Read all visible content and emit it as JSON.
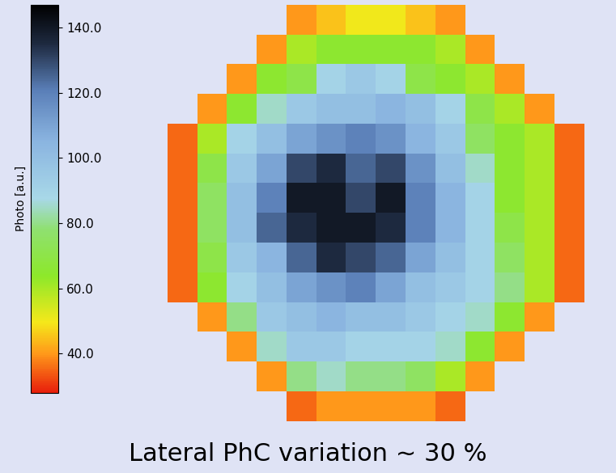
{
  "chart_data": {
    "type": "heatmap",
    "caption": "Lateral PhC variation ~ 30 %",
    "colorbar_label": "Photo [a.u.]",
    "colorbar_range": [
      28,
      147
    ],
    "colorbar_ticks": [
      {
        "value": 40,
        "label": "40.0"
      },
      {
        "value": 60,
        "label": "60.0"
      },
      {
        "value": 80,
        "label": "80.0"
      },
      {
        "value": 100,
        "label": "100.0"
      },
      {
        "value": 120,
        "label": "120.0"
      },
      {
        "value": 140,
        "label": "140.0"
      }
    ],
    "cells": [
      [
        null,
        null,
        null,
        null,
        40,
        45,
        50,
        50,
        45,
        40,
        null,
        null,
        null,
        null
      ],
      [
        null,
        null,
        null,
        40,
        60,
        65,
        65,
        65,
        65,
        60,
        40,
        null,
        null,
        null
      ],
      [
        null,
        null,
        40,
        65,
        70,
        90,
        95,
        90,
        70,
        65,
        60,
        40,
        null,
        null
      ],
      [
        null,
        40,
        65,
        85,
        95,
        100,
        100,
        105,
        100,
        90,
        70,
        60,
        40,
        null
      ],
      [
        35,
        60,
        90,
        100,
        110,
        115,
        120,
        115,
        105,
        95,
        75,
        65,
        60,
        35
      ],
      [
        35,
        70,
        95,
        110,
        130,
        135,
        125,
        130,
        115,
        100,
        85,
        65,
        60,
        35
      ],
      [
        35,
        75,
        100,
        120,
        140,
        140,
        130,
        140,
        120,
        105,
        90,
        65,
        60,
        35
      ],
      [
        35,
        75,
        100,
        125,
        135,
        140,
        140,
        135,
        120,
        105,
        90,
        70,
        60,
        35
      ],
      [
        35,
        70,
        95,
        105,
        125,
        135,
        130,
        125,
        110,
        100,
        90,
        75,
        60,
        35
      ],
      [
        35,
        65,
        90,
        100,
        110,
        115,
        120,
        110,
        100,
        95,
        90,
        80,
        60,
        35
      ],
      [
        null,
        40,
        80,
        95,
        100,
        105,
        100,
        100,
        95,
        90,
        85,
        65,
        40,
        null
      ],
      [
        null,
        null,
        40,
        85,
        95,
        95,
        90,
        90,
        90,
        85,
        65,
        40,
        null,
        null
      ],
      [
        null,
        null,
        null,
        40,
        80,
        85,
        80,
        80,
        75,
        60,
        40,
        null,
        null,
        null
      ],
      [
        null,
        null,
        null,
        null,
        35,
        40,
        40,
        40,
        40,
        35,
        null,
        null,
        null,
        null
      ]
    ]
  }
}
